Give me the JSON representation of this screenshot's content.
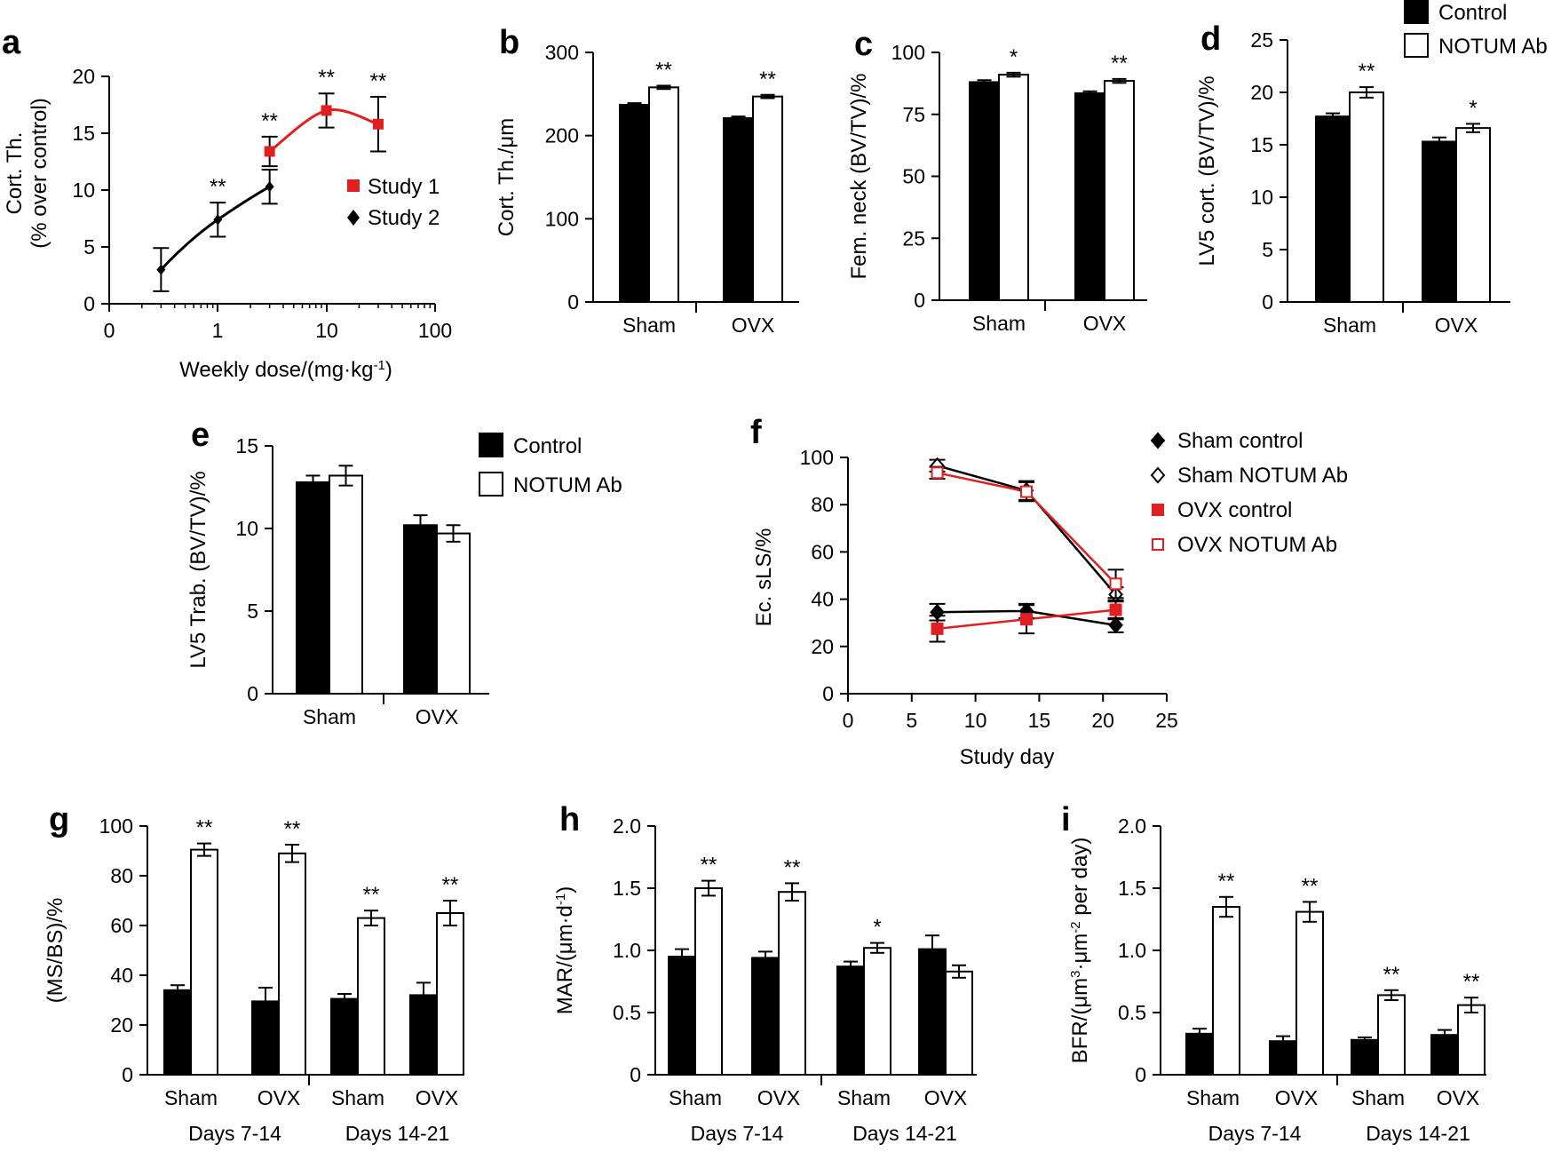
{
  "colors": {
    "control": "#000000",
    "notum": "#ffffff",
    "study1": "#e02020",
    "study2": "#000000",
    "ovx_line": "#e02020"
  },
  "chart_data": [
    {
      "panel": "a",
      "type": "line",
      "xlabel": "Weekly dose/(mg·kg",
      "xlabel_sup": "-1",
      "xlabel_end": ")",
      "ylabel": "Cort. Th.",
      "ylabel2": "(% over control)",
      "xscale": "log",
      "xlim": [
        0.1,
        100
      ],
      "ylim": [
        0,
        20
      ],
      "xticks": [
        "0",
        "1",
        "10",
        "100"
      ],
      "yticks": [
        "0",
        "5",
        "10",
        "15",
        "20"
      ],
      "legend": [
        "Study 1",
        "Study 2"
      ],
      "series": [
        {
          "name": "Study 1",
          "x": [
            3,
            10,
            30
          ],
          "y": [
            13.4,
            17,
            15.8
          ],
          "err": [
            1.3,
            1.5,
            2.4
          ],
          "stars": [
            "**",
            "**",
            "**"
          ]
        },
        {
          "name": "Study 2",
          "x": [
            0.3,
            1,
            3
          ],
          "y": [
            3.0,
            7.4,
            10.3
          ],
          "err": [
            1.9,
            1.5,
            1.5
          ],
          "stars": [
            "",
            "**",
            ""
          ]
        }
      ]
    },
    {
      "panel": "b",
      "type": "bar",
      "ylabel": "Cort. Th./μm",
      "ylim": [
        0,
        300
      ],
      "yticks": [
        "0",
        "100",
        "200",
        "300"
      ],
      "categories": [
        "Sham",
        "OVX"
      ],
      "series": [
        {
          "name": "Control",
          "values": [
            237,
            221
          ],
          "err": [
            2,
            2
          ]
        },
        {
          "name": "NOTUM Ab",
          "values": [
            258,
            247
          ],
          "err": [
            2,
            2
          ]
        }
      ],
      "stars": [
        "**",
        "**"
      ]
    },
    {
      "panel": "c",
      "type": "bar",
      "ylabel": "Fem. neck (BV/TV)/%",
      "ylim": [
        0,
        100
      ],
      "yticks": [
        "0",
        "25",
        "50",
        "75",
        "100"
      ],
      "categories": [
        "Sham",
        "OVX"
      ],
      "series": [
        {
          "name": "Control",
          "values": [
            88,
            83.5
          ],
          "err": [
            0.8,
            0.8
          ]
        },
        {
          "name": "NOTUM Ab",
          "values": [
            91,
            88.5
          ],
          "err": [
            0.8,
            0.8
          ]
        }
      ],
      "stars": [
        "*",
        "**"
      ]
    },
    {
      "panel": "d",
      "type": "bar",
      "ylabel": "LV5 cort. (BV/TV)/%",
      "ylim": [
        0,
        25
      ],
      "yticks": [
        "0",
        "5",
        "10",
        "15",
        "20",
        "25"
      ],
      "categories": [
        "Sham",
        "OVX"
      ],
      "series": [
        {
          "name": "Control",
          "values": [
            17.7,
            15.3
          ],
          "err": [
            0.3,
            0.4
          ]
        },
        {
          "name": "NOTUM Ab",
          "values": [
            20,
            16.6
          ],
          "err": [
            0.5,
            0.4
          ]
        }
      ],
      "stars": [
        "**",
        "*"
      ],
      "legend": [
        "Control",
        "NOTUM Ab"
      ]
    },
    {
      "panel": "e",
      "type": "bar",
      "ylabel": "LV5 Trab. (BV/TV)/%",
      "ylim": [
        0,
        15
      ],
      "yticks": [
        "0",
        "5",
        "10",
        "15"
      ],
      "categories": [
        "Sham",
        "OVX"
      ],
      "series": [
        {
          "name": "Control",
          "values": [
            12.8,
            10.2
          ],
          "err": [
            0.4,
            0.6
          ]
        },
        {
          "name": "NOTUM Ab",
          "values": [
            13.2,
            9.7
          ],
          "err": [
            0.6,
            0.5
          ]
        }
      ],
      "stars": [
        "",
        ""
      ],
      "legend": [
        "Control",
        "NOTUM Ab"
      ]
    },
    {
      "panel": "f",
      "type": "line",
      "xlabel": "Study day",
      "ylabel": "Ec. sLS/%",
      "xlim": [
        0,
        25
      ],
      "ylim": [
        0,
        100
      ],
      "xticks": [
        "0",
        "5",
        "10",
        "15",
        "20",
        "25"
      ],
      "yticks": [
        "0",
        "20",
        "40",
        "60",
        "80",
        "100"
      ],
      "legend": [
        "Sham control",
        "Sham NOTUM Ab",
        "OVX control",
        "OVX NOTUM Ab"
      ],
      "series": [
        {
          "name": "Sham control",
          "x": [
            7,
            14,
            21
          ],
          "y": [
            34.5,
            35,
            29
          ],
          "err": [
            3.5,
            3,
            3
          ]
        },
        {
          "name": "Sham NOTUM Ab",
          "x": [
            7,
            14,
            21
          ],
          "y": [
            96.5,
            86,
            42
          ],
          "err": [
            2.5,
            4,
            3
          ]
        },
        {
          "name": "OVX control",
          "x": [
            7,
            14,
            21
          ],
          "y": [
            27.5,
            31.5,
            35.5
          ],
          "err": [
            5.5,
            6,
            4
          ]
        },
        {
          "name": "OVX NOTUM Ab",
          "x": [
            7,
            14,
            21
          ],
          "y": [
            93.5,
            85.5,
            46.5
          ],
          "err": [
            2.5,
            4,
            6
          ]
        }
      ]
    },
    {
      "panel": "g",
      "type": "bar",
      "ylabel": "(MS/BS)/%",
      "ylim": [
        0,
        100
      ],
      "yticks": [
        "0",
        "20",
        "40",
        "60",
        "80",
        "100"
      ],
      "categories": [
        "Sham",
        "OVX",
        "Sham",
        "OVX"
      ],
      "groups": [
        "Days 7-14",
        "Days 14-21"
      ],
      "series": [
        {
          "name": "Control",
          "values": [
            34,
            29.5,
            30.5,
            32
          ],
          "err": [
            2,
            5.5,
            2,
            5
          ]
        },
        {
          "name": "NOTUM Ab",
          "values": [
            90.5,
            89,
            63,
            65
          ],
          "err": [
            2.5,
            3.5,
            3,
            5
          ]
        }
      ],
      "stars": [
        "**",
        "**",
        "**",
        "**"
      ]
    },
    {
      "panel": "h",
      "type": "bar",
      "ylabel": "MAR/(μm·d",
      "ylabel_sup": "-1",
      "ylabel_end": ")",
      "ylim": [
        0,
        2.0
      ],
      "yticks": [
        "0",
        "0.5",
        "1.0",
        "1.5",
        "2.0"
      ],
      "categories": [
        "Sham",
        "OVX",
        "Sham",
        "OVX"
      ],
      "groups": [
        "Days 7-14",
        "Days 14-21"
      ],
      "series": [
        {
          "name": "Control",
          "values": [
            0.95,
            0.94,
            0.87,
            1.01
          ],
          "err": [
            0.06,
            0.05,
            0.04,
            0.11
          ]
        },
        {
          "name": "NOTUM Ab",
          "values": [
            1.5,
            1.47,
            1.02,
            0.83
          ],
          "err": [
            0.06,
            0.07,
            0.04,
            0.05
          ]
        }
      ],
      "stars": [
        "**",
        "**",
        "*",
        ""
      ]
    },
    {
      "panel": "i",
      "type": "bar",
      "ylabel": "BFR/(μm",
      "ylabel_sup": "3",
      "ylabel_mid": "·μm",
      "ylabel_sup2": "-2",
      "ylabel_end": " per day)",
      "ylim": [
        0,
        2.0
      ],
      "yticks": [
        "0",
        "0.5",
        "1.0",
        "1.5",
        "2.0"
      ],
      "categories": [
        "Sham",
        "OVX",
        "Sham",
        "OVX"
      ],
      "groups": [
        "Days 7-14",
        "Days 14-21"
      ],
      "series": [
        {
          "name": "Control",
          "values": [
            0.33,
            0.27,
            0.28,
            0.32
          ],
          "err": [
            0.04,
            0.04,
            0.02,
            0.04
          ]
        },
        {
          "name": "NOTUM Ab",
          "values": [
            1.35,
            1.31,
            0.64,
            0.56
          ],
          "err": [
            0.08,
            0.08,
            0.04,
            0.06
          ]
        }
      ],
      "stars": [
        "**",
        "**",
        "**",
        "**"
      ]
    }
  ]
}
